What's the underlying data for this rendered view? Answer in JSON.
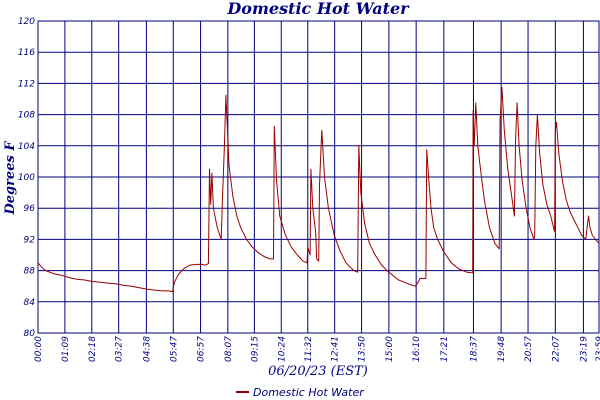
{
  "chart_data": {
    "type": "line",
    "title": "Domestic Hot Water",
    "ylabel": "Degrees F",
    "xlabel": "06/20/23 (EST)",
    "ylim": [
      80,
      120
    ],
    "yticks": [
      80,
      84,
      88,
      92,
      96,
      100,
      104,
      108,
      112,
      116,
      120
    ],
    "xlim": [
      0,
      1439
    ],
    "xticks": [
      {
        "label": "00:00",
        "min": 0
      },
      {
        "label": "01:09",
        "min": 69
      },
      {
        "label": "02:18",
        "min": 138
      },
      {
        "label": "03:27",
        "min": 207
      },
      {
        "label": "04:38",
        "min": 278
      },
      {
        "label": "05:47",
        "min": 347
      },
      {
        "label": "06:57",
        "min": 417
      },
      {
        "label": "08:07",
        "min": 487
      },
      {
        "label": "09:15",
        "min": 555
      },
      {
        "label": "10:24",
        "min": 624
      },
      {
        "label": "11:32",
        "min": 692
      },
      {
        "label": "12:41",
        "min": 761
      },
      {
        "label": "13:50",
        "min": 830
      },
      {
        "label": "15:00",
        "min": 900
      },
      {
        "label": "16:10",
        "min": 970
      },
      {
        "label": "17:21",
        "min": 1041
      },
      {
        "label": "18:37",
        "min": 1117
      },
      {
        "label": "19:48",
        "min": 1188
      },
      {
        "label": "20:57",
        "min": 1257
      },
      {
        "label": "22:07",
        "min": 1327
      },
      {
        "label": "23:19",
        "min": 1399
      },
      {
        "label": "23:59",
        "min": 1439
      }
    ],
    "series": [
      {
        "name": "Domestic Hot Water",
        "color": "#9b0000",
        "points": [
          [
            0,
            89.0
          ],
          [
            10,
            88.4
          ],
          [
            20,
            88.0
          ],
          [
            40,
            87.6
          ],
          [
            60,
            87.4
          ],
          [
            80,
            87.1
          ],
          [
            100,
            86.9
          ],
          [
            120,
            86.8
          ],
          [
            140,
            86.6
          ],
          [
            160,
            86.5
          ],
          [
            180,
            86.4
          ],
          [
            200,
            86.3
          ],
          [
            220,
            86.1
          ],
          [
            240,
            86.0
          ],
          [
            260,
            85.8
          ],
          [
            280,
            85.6
          ],
          [
            300,
            85.5
          ],
          [
            320,
            85.4
          ],
          [
            335,
            85.4
          ],
          [
            345,
            85.3
          ],
          [
            350,
            86.5
          ],
          [
            360,
            87.5
          ],
          [
            375,
            88.3
          ],
          [
            390,
            88.7
          ],
          [
            405,
            88.8
          ],
          [
            420,
            88.8
          ],
          [
            430,
            88.7
          ],
          [
            437,
            88.9
          ],
          [
            440,
            101.0
          ],
          [
            443,
            96.5
          ],
          [
            446,
            100.5
          ],
          [
            450,
            96.0
          ],
          [
            460,
            93.5
          ],
          [
            470,
            92.0
          ],
          [
            473,
            97.0
          ],
          [
            478,
            104.0
          ],
          [
            482,
            110.5
          ],
          [
            486,
            106.0
          ],
          [
            490,
            101.5
          ],
          [
            500,
            97.5
          ],
          [
            510,
            95.0
          ],
          [
            520,
            93.5
          ],
          [
            535,
            92.0
          ],
          [
            550,
            91.0
          ],
          [
            565,
            90.3
          ],
          [
            580,
            89.8
          ],
          [
            595,
            89.5
          ],
          [
            604,
            89.5
          ],
          [
            606,
            106.5
          ],
          [
            612,
            99.5
          ],
          [
            620,
            95.0
          ],
          [
            635,
            92.5
          ],
          [
            650,
            91.0
          ],
          [
            665,
            90.0
          ],
          [
            680,
            89.2
          ],
          [
            690,
            89.0
          ],
          [
            692,
            91.0
          ],
          [
            698,
            90.0
          ],
          [
            700,
            101.0
          ],
          [
            705,
            96.0
          ],
          [
            712,
            93.0
          ],
          [
            715,
            89.5
          ],
          [
            720,
            89.2
          ],
          [
            722,
            99.0
          ],
          [
            728,
            106.0
          ],
          [
            735,
            100.0
          ],
          [
            745,
            96.0
          ],
          [
            760,
            92.5
          ],
          [
            775,
            90.5
          ],
          [
            790,
            89.0
          ],
          [
            810,
            88.0
          ],
          [
            820,
            87.8
          ],
          [
            823,
            104.0
          ],
          [
            828,
            98.0
          ],
          [
            838,
            94.0
          ],
          [
            850,
            91.5
          ],
          [
            865,
            90.0
          ],
          [
            880,
            88.8
          ],
          [
            895,
            88.0
          ],
          [
            910,
            87.4
          ],
          [
            925,
            86.8
          ],
          [
            940,
            86.5
          ],
          [
            955,
            86.2
          ],
          [
            968,
            86.0
          ],
          [
            975,
            86.5
          ],
          [
            980,
            87.0
          ],
          [
            990,
            87.0
          ],
          [
            995,
            87.0
          ],
          [
            997,
            103.5
          ],
          [
            1002,
            100.0
          ],
          [
            1008,
            96.0
          ],
          [
            1015,
            93.5
          ],
          [
            1025,
            92.0
          ],
          [
            1040,
            90.5
          ],
          [
            1060,
            89.0
          ],
          [
            1080,
            88.2
          ],
          [
            1100,
            87.8
          ],
          [
            1115,
            87.7
          ],
          [
            1116,
            108.5
          ],
          [
            1119,
            104.0
          ],
          [
            1123,
            109.5
          ],
          [
            1128,
            104.0
          ],
          [
            1135,
            101.0
          ],
          [
            1145,
            97.0
          ],
          [
            1158,
            93.5
          ],
          [
            1172,
            91.5
          ],
          [
            1183,
            90.8
          ],
          [
            1185,
            107.0
          ],
          [
            1190,
            111.5
          ],
          [
            1196,
            106.0
          ],
          [
            1205,
            101.0
          ],
          [
            1215,
            97.5
          ],
          [
            1222,
            95.0
          ],
          [
            1225,
            105.0
          ],
          [
            1229,
            109.5
          ],
          [
            1234,
            104.0
          ],
          [
            1242,
            99.5
          ],
          [
            1252,
            96.0
          ],
          [
            1262,
            93.5
          ],
          [
            1272,
            92.0
          ],
          [
            1274,
            92.5
          ],
          [
            1277,
            104.0
          ],
          [
            1281,
            108.0
          ],
          [
            1287,
            103.0
          ],
          [
            1295,
            99.0
          ],
          [
            1305,
            96.5
          ],
          [
            1315,
            95.0
          ],
          [
            1325,
            93.0
          ],
          [
            1327,
            106.0
          ],
          [
            1330,
            107.0
          ],
          [
            1336,
            103.0
          ],
          [
            1345,
            99.5
          ],
          [
            1355,
            97.0
          ],
          [
            1365,
            95.5
          ],
          [
            1375,
            94.5
          ],
          [
            1385,
            93.5
          ],
          [
            1395,
            92.5
          ],
          [
            1405,
            92.0
          ],
          [
            1412,
            95.0
          ],
          [
            1416,
            93.5
          ],
          [
            1422,
            92.5
          ],
          [
            1430,
            92.0
          ],
          [
            1439,
            91.5
          ]
        ]
      }
    ],
    "legend": [
      {
        "label": "Domestic Hot Water",
        "color": "#9b0000"
      }
    ],
    "legend_position": "bottom-center"
  },
  "style": {
    "grid_color": "#00007f",
    "axis_color": "#00007f",
    "text_color": "#00007f",
    "background": "#ffffff"
  }
}
